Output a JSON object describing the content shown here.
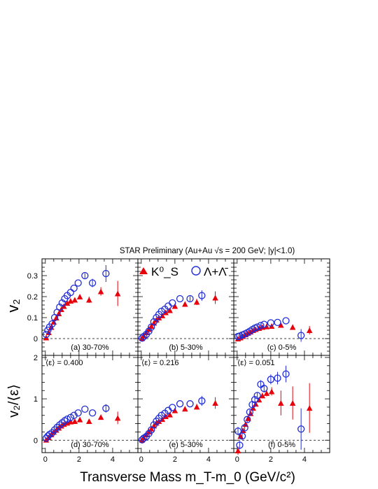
{
  "title": "STAR Preliminary (Au+Au √s = 200 GeV; |y|<1.0)",
  "xlabel": "Transverse Mass m_T-m_0 (GeV/c²)",
  "legend": {
    "k0s": "K⁰_S",
    "lambda": "Λ+Λ̄"
  },
  "colors": {
    "k0s": "#e8000b",
    "lambda": "#1f2bd6",
    "frame": "#000000"
  },
  "chart_data": [
    {
      "type": "scatter",
      "panel": "(a) 30-70%",
      "row": "v2",
      "ylabel": "v₂",
      "xlim": [
        -0.2,
        5.5
      ],
      "ylim": [
        -0.08,
        0.38
      ],
      "x_ticks": [
        0,
        2,
        4
      ],
      "y_ticks": [
        0,
        0.1,
        0.2,
        0.3
      ],
      "series": [
        {
          "name": "K⁰_S",
          "marker": "triangle",
          "x": [
            0.05,
            0.2,
            0.35,
            0.5,
            0.65,
            0.8,
            0.95,
            1.1,
            1.3,
            1.5,
            1.75,
            2.05,
            2.6,
            3.3,
            4.3
          ],
          "y": [
            0.005,
            0.03,
            0.055,
            0.08,
            0.1,
            0.12,
            0.14,
            0.155,
            0.17,
            0.18,
            0.185,
            0.2,
            0.185,
            0.225,
            0.215
          ],
          "err": [
            0.003,
            0.003,
            0.003,
            0.004,
            0.004,
            0.004,
            0.004,
            0.005,
            0.005,
            0.006,
            0.007,
            0.01,
            0.015,
            0.02,
            0.06
          ]
        },
        {
          "name": "Λ+Λ̄",
          "marker": "circle",
          "x": [
            0.05,
            0.15,
            0.25,
            0.4,
            0.55,
            0.7,
            0.85,
            1.0,
            1.15,
            1.3,
            1.5,
            1.7,
            1.95,
            2.35,
            2.8,
            3.6
          ],
          "y": [
            0.02,
            0.04,
            0.055,
            0.07,
            0.1,
            0.125,
            0.15,
            0.17,
            0.19,
            0.205,
            0.22,
            0.24,
            0.265,
            0.3,
            0.265,
            0.31
          ],
          "err": [
            0.003,
            0.003,
            0.003,
            0.004,
            0.004,
            0.004,
            0.004,
            0.005,
            0.005,
            0.005,
            0.006,
            0.007,
            0.008,
            0.012,
            0.02,
            0.04
          ]
        }
      ]
    },
    {
      "type": "scatter",
      "panel": "(b) 5-30%",
      "row": "v2",
      "xlim": [
        -0.2,
        5.5
      ],
      "ylim": [
        -0.08,
        0.38
      ],
      "x_ticks": [
        0,
        2,
        4
      ],
      "y_ticks": [
        0,
        0.1,
        0.2,
        0.3
      ],
      "series": [
        {
          "name": "K⁰_S",
          "marker": "triangle",
          "x": [
            0.05,
            0.15,
            0.3,
            0.45,
            0.6,
            0.75,
            0.9,
            1.05,
            1.25,
            1.45,
            1.7,
            2.0,
            2.6,
            3.3,
            4.4
          ],
          "y": [
            0.002,
            0.015,
            0.03,
            0.045,
            0.06,
            0.075,
            0.09,
            0.1,
            0.11,
            0.125,
            0.135,
            0.155,
            0.165,
            0.175,
            0.195
          ],
          "err": [
            0.002,
            0.002,
            0.002,
            0.003,
            0.003,
            0.003,
            0.003,
            0.004,
            0.004,
            0.004,
            0.005,
            0.006,
            0.01,
            0.015,
            0.03
          ]
        },
        {
          "name": "Λ+Λ̄",
          "marker": "circle",
          "x": [
            0.05,
            0.15,
            0.3,
            0.45,
            0.6,
            0.75,
            0.9,
            1.05,
            1.2,
            1.4,
            1.6,
            1.85,
            2.3,
            2.9,
            3.6
          ],
          "y": [
            0.002,
            0.01,
            0.02,
            0.035,
            0.055,
            0.08,
            0.1,
            0.115,
            0.13,
            0.14,
            0.155,
            0.17,
            0.19,
            0.19,
            0.205
          ],
          "err": [
            0.002,
            0.002,
            0.002,
            0.003,
            0.003,
            0.003,
            0.003,
            0.004,
            0.004,
            0.004,
            0.005,
            0.006,
            0.008,
            0.012,
            0.025
          ]
        }
      ]
    },
    {
      "type": "scatter",
      "panel": "(c) 0-5%",
      "row": "v2",
      "xlim": [
        -0.2,
        5.5
      ],
      "ylim": [
        -0.08,
        0.38
      ],
      "x_ticks": [
        0,
        2,
        4
      ],
      "y_ticks": [
        0,
        0.1,
        0.2,
        0.3
      ],
      "series": [
        {
          "name": "K⁰_S",
          "marker": "triangle",
          "x": [
            0.05,
            0.2,
            0.35,
            0.5,
            0.65,
            0.8,
            0.95,
            1.1,
            1.3,
            1.5,
            1.75,
            2.05,
            2.6,
            3.3,
            4.3
          ],
          "y": [
            0.0,
            0.005,
            0.012,
            0.02,
            0.027,
            0.033,
            0.04,
            0.045,
            0.05,
            0.055,
            0.058,
            0.06,
            0.065,
            0.055,
            0.04
          ],
          "err": [
            0.002,
            0.002,
            0.002,
            0.002,
            0.002,
            0.002,
            0.003,
            0.003,
            0.003,
            0.003,
            0.004,
            0.005,
            0.008,
            0.012,
            0.02
          ]
        },
        {
          "name": "Λ+Λ̄",
          "marker": "circle",
          "x": [
            0.05,
            0.15,
            0.3,
            0.45,
            0.6,
            0.75,
            0.9,
            1.05,
            1.2,
            1.4,
            1.6,
            2.0,
            2.4,
            2.9,
            3.8
          ],
          "y": [
            0.01,
            0.012,
            0.017,
            0.022,
            0.028,
            0.035,
            0.043,
            0.05,
            0.055,
            0.062,
            0.068,
            0.075,
            0.077,
            0.085,
            0.015
          ],
          "err": [
            0.002,
            0.002,
            0.002,
            0.002,
            0.002,
            0.002,
            0.003,
            0.003,
            0.003,
            0.004,
            0.004,
            0.005,
            0.006,
            0.01,
            0.03
          ]
        }
      ]
    },
    {
      "type": "scatter",
      "panel": "(d) 30-70%",
      "row": "v2/eps",
      "eps": "⟨ε⟩ = 0.400",
      "ylabel": "v₂/⟨ε⟩",
      "xlim": [
        -0.2,
        5.5
      ],
      "ylim": [
        -0.3,
        2.05
      ],
      "x_ticks": [
        0,
        2,
        4
      ],
      "y_ticks": [
        0,
        1,
        2
      ],
      "series": [
        {
          "name": "K⁰_S",
          "marker": "triangle",
          "x": [
            0.05,
            0.2,
            0.35,
            0.5,
            0.65,
            0.8,
            0.95,
            1.1,
            1.3,
            1.5,
            1.75,
            2.05,
            2.6,
            3.3,
            4.3
          ],
          "y": [
            0.01,
            0.07,
            0.14,
            0.2,
            0.25,
            0.3,
            0.35,
            0.39,
            0.42,
            0.45,
            0.46,
            0.5,
            0.46,
            0.56,
            0.54
          ],
          "err": [
            0.008,
            0.008,
            0.008,
            0.01,
            0.01,
            0.01,
            0.01,
            0.012,
            0.012,
            0.015,
            0.018,
            0.025,
            0.04,
            0.05,
            0.15
          ]
        },
        {
          "name": "Λ+Λ̄",
          "marker": "circle",
          "x": [
            0.05,
            0.15,
            0.25,
            0.4,
            0.55,
            0.7,
            0.85,
            1.0,
            1.15,
            1.3,
            1.5,
            1.7,
            1.95,
            2.35,
            2.8,
            3.6
          ],
          "y": [
            0.05,
            0.1,
            0.14,
            0.18,
            0.25,
            0.31,
            0.37,
            0.42,
            0.47,
            0.51,
            0.55,
            0.6,
            0.66,
            0.75,
            0.66,
            0.77
          ],
          "err": [
            0.008,
            0.008,
            0.008,
            0.01,
            0.01,
            0.01,
            0.01,
            0.012,
            0.012,
            0.012,
            0.015,
            0.018,
            0.02,
            0.03,
            0.05,
            0.1
          ]
        }
      ]
    },
    {
      "type": "scatter",
      "panel": "(e) 5-30%",
      "row": "v2/eps",
      "eps": "⟨ε⟩ = 0.216",
      "xlim": [
        -0.2,
        5.5
      ],
      "ylim": [
        -0.3,
        2.05
      ],
      "x_ticks": [
        0,
        2,
        4
      ],
      "y_ticks": [
        0,
        1,
        2
      ],
      "series": [
        {
          "name": "K⁰_S",
          "marker": "triangle",
          "x": [
            0.05,
            0.15,
            0.3,
            0.45,
            0.6,
            0.75,
            0.9,
            1.05,
            1.25,
            1.45,
            1.7,
            2.0,
            2.6,
            3.3,
            4.4
          ],
          "y": [
            0.01,
            0.07,
            0.14,
            0.21,
            0.28,
            0.35,
            0.42,
            0.46,
            0.51,
            0.58,
            0.62,
            0.72,
            0.76,
            0.81,
            0.9
          ],
          "err": [
            0.01,
            0.01,
            0.01,
            0.014,
            0.014,
            0.014,
            0.014,
            0.018,
            0.018,
            0.018,
            0.023,
            0.028,
            0.046,
            0.07,
            0.14
          ]
        },
        {
          "name": "Λ+Λ̄",
          "marker": "circle",
          "x": [
            0.05,
            0.15,
            0.3,
            0.45,
            0.6,
            0.75,
            0.9,
            1.05,
            1.2,
            1.4,
            1.6,
            1.85,
            2.3,
            2.9,
            3.6
          ],
          "y": [
            0.01,
            0.05,
            0.09,
            0.16,
            0.25,
            0.37,
            0.46,
            0.53,
            0.6,
            0.65,
            0.72,
            0.79,
            0.88,
            0.88,
            0.95
          ],
          "err": [
            0.01,
            0.01,
            0.01,
            0.014,
            0.014,
            0.014,
            0.014,
            0.018,
            0.018,
            0.018,
            0.023,
            0.028,
            0.037,
            0.056,
            0.12
          ]
        }
      ]
    },
    {
      "type": "scatter",
      "panel": "(f) 0-5%",
      "row": "v2/eps",
      "eps": "⟨ε⟩ = 0.051",
      "xlim": [
        -0.2,
        5.5
      ],
      "ylim": [
        -0.3,
        2.05
      ],
      "x_ticks": [
        0,
        2,
        4
      ],
      "y_ticks": [
        0,
        1,
        2
      ],
      "series": [
        {
          "name": "K⁰_S",
          "marker": "triangle",
          "x": [
            0.05,
            0.2,
            0.35,
            0.5,
            0.65,
            0.8,
            0.95,
            1.1,
            1.3,
            1.5,
            1.75,
            2.05,
            2.6,
            3.3,
            4.3
          ],
          "y": [
            -0.25,
            0.1,
            0.24,
            0.39,
            0.53,
            0.65,
            0.78,
            0.88,
            0.98,
            1.08,
            1.14,
            1.18,
            0.9,
            0.9,
            0.78
          ],
          "err": [
            0.1,
            0.06,
            0.05,
            0.05,
            0.05,
            0.05,
            0.06,
            0.06,
            0.06,
            0.07,
            0.08,
            0.1,
            0.3,
            0.4,
            0.6
          ]
        },
        {
          "name": "Λ+Λ̄",
          "marker": "circle",
          "x": [
            0.05,
            0.15,
            0.3,
            0.45,
            0.6,
            0.75,
            0.9,
            1.05,
            1.2,
            1.4,
            1.6,
            2.0,
            2.4,
            2.9,
            3.8
          ],
          "y": [
            0.22,
            -0.12,
            0.1,
            0.3,
            0.5,
            0.68,
            0.86,
            0.98,
            1.08,
            1.35,
            1.25,
            1.47,
            1.5,
            1.6,
            0.27
          ],
          "err": [
            0.1,
            0.1,
            0.08,
            0.06,
            0.06,
            0.06,
            0.07,
            0.08,
            0.08,
            0.1,
            0.1,
            0.12,
            0.15,
            0.2,
            0.5
          ]
        }
      ]
    }
  ]
}
